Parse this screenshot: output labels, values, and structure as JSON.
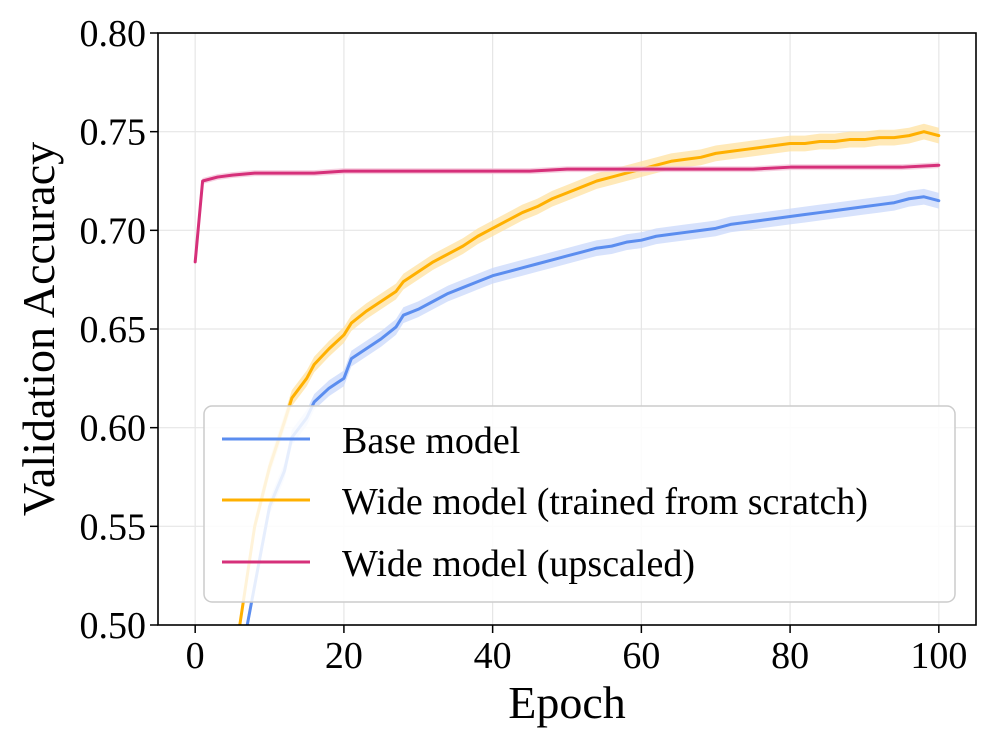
{
  "chart_data": {
    "type": "line",
    "title": "",
    "xlabel": "Epoch",
    "ylabel": "Validation Accuracy",
    "xlim": [
      -5,
      105
    ],
    "ylim": [
      0.5,
      0.8
    ],
    "xticks": [
      0,
      20,
      40,
      60,
      80,
      100
    ],
    "xtick_labels": [
      "0",
      "20",
      "40",
      "60",
      "80",
      "100"
    ],
    "yticks": [
      0.5,
      0.55,
      0.6,
      0.65,
      0.7,
      0.75,
      0.8
    ],
    "ytick_labels": [
      "0.50",
      "0.55",
      "0.60",
      "0.65",
      "0.70",
      "0.75",
      "0.80"
    ],
    "grid": true,
    "legend_position": "lower-right",
    "series": [
      {
        "name": "Base model",
        "color": "#5b8def",
        "shade": "#c9d8fb",
        "band": 0.004,
        "x": [
          7,
          9,
          10,
          12,
          13,
          15,
          16,
          18,
          20,
          21,
          23,
          25,
          27,
          28,
          30,
          32,
          34,
          36,
          38,
          40,
          42,
          44,
          46,
          48,
          50,
          52,
          54,
          56,
          58,
          60,
          62,
          64,
          66,
          68,
          70,
          72,
          74,
          76,
          78,
          80,
          82,
          84,
          86,
          88,
          90,
          92,
          94,
          96,
          98,
          100
        ],
        "values": [
          0.5,
          0.54,
          0.56,
          0.578,
          0.595,
          0.605,
          0.613,
          0.62,
          0.625,
          0.635,
          0.64,
          0.645,
          0.651,
          0.657,
          0.66,
          0.664,
          0.668,
          0.671,
          0.674,
          0.677,
          0.679,
          0.681,
          0.683,
          0.685,
          0.687,
          0.689,
          0.691,
          0.692,
          0.694,
          0.695,
          0.697,
          0.698,
          0.699,
          0.7,
          0.701,
          0.703,
          0.704,
          0.705,
          0.706,
          0.707,
          0.708,
          0.709,
          0.71,
          0.711,
          0.712,
          0.713,
          0.714,
          0.716,
          0.717,
          0.715
        ]
      },
      {
        "name": "Wide model (trained from scratch)",
        "color": "#ffb000",
        "shade": "#ffe2a0",
        "band": 0.004,
        "x": [
          6,
          8,
          10,
          12,
          13,
          15,
          16,
          18,
          20,
          21,
          23,
          25,
          27,
          28,
          30,
          32,
          34,
          36,
          38,
          40,
          42,
          44,
          46,
          48,
          50,
          52,
          54,
          56,
          58,
          60,
          62,
          64,
          66,
          68,
          70,
          72,
          74,
          76,
          78,
          80,
          82,
          84,
          86,
          88,
          90,
          92,
          94,
          96,
          98,
          100
        ],
        "values": [
          0.5,
          0.55,
          0.58,
          0.603,
          0.615,
          0.625,
          0.632,
          0.64,
          0.647,
          0.653,
          0.659,
          0.664,
          0.669,
          0.674,
          0.679,
          0.684,
          0.688,
          0.692,
          0.697,
          0.701,
          0.705,
          0.709,
          0.712,
          0.716,
          0.719,
          0.722,
          0.725,
          0.727,
          0.729,
          0.731,
          0.733,
          0.735,
          0.736,
          0.737,
          0.739,
          0.74,
          0.741,
          0.742,
          0.743,
          0.744,
          0.744,
          0.745,
          0.745,
          0.746,
          0.746,
          0.747,
          0.747,
          0.748,
          0.75,
          0.748
        ]
      },
      {
        "name": "Wide model (upscaled)",
        "color": "#d6307a",
        "shade": "#f3c1d7",
        "band": 0.0015,
        "x": [
          0,
          1,
          3,
          5,
          8,
          12,
          16,
          20,
          25,
          30,
          35,
          40,
          45,
          50,
          55,
          60,
          65,
          70,
          75,
          80,
          85,
          90,
          95,
          100
        ],
        "values": [
          0.684,
          0.725,
          0.727,
          0.728,
          0.729,
          0.729,
          0.729,
          0.73,
          0.73,
          0.73,
          0.73,
          0.73,
          0.73,
          0.731,
          0.731,
          0.731,
          0.731,
          0.731,
          0.731,
          0.732,
          0.732,
          0.732,
          0.732,
          0.733
        ]
      }
    ]
  }
}
